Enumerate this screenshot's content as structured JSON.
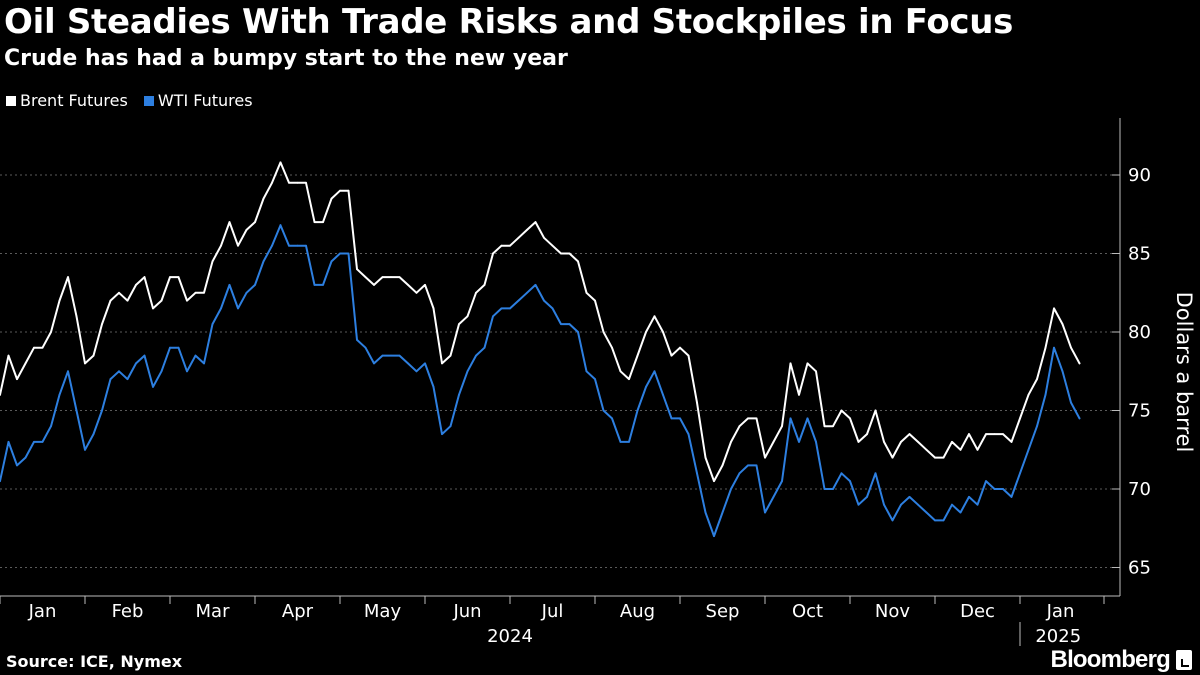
{
  "chart_data": {
    "type": "line",
    "title": "Oil Steadies With Trade Risks and Stockpiles in Focus",
    "subtitle": "Crude has had a bumpy start to the new year",
    "ylabel": "Dollars a barrel",
    "ylim": [
      63,
      93.5
    ],
    "yticks": [
      "65",
      "70",
      "75",
      "80",
      "85",
      "90"
    ],
    "x_domain": [
      0,
      12.8
    ],
    "months": [
      "Jan",
      "Feb",
      "Mar",
      "Apr",
      "May",
      "Jun",
      "Jul",
      "Aug",
      "Sep",
      "Oct",
      "Nov",
      "Dec",
      "Jan"
    ],
    "years": [
      "2024",
      "2025"
    ],
    "legend_position": "top-left",
    "grid": true,
    "series": [
      {
        "name": "Brent Futures",
        "color": "#ffffff",
        "x": [
          0.0,
          0.1,
          0.2,
          0.3,
          0.4,
          0.5,
          0.6,
          0.7,
          0.8,
          0.9,
          1.0,
          1.1,
          1.2,
          1.3,
          1.4,
          1.5,
          1.6,
          1.7,
          1.8,
          1.9,
          2.0,
          2.1,
          2.2,
          2.3,
          2.4,
          2.5,
          2.6,
          2.7,
          2.8,
          2.9,
          3.0,
          3.1,
          3.2,
          3.3,
          3.4,
          3.5,
          3.6,
          3.7,
          3.8,
          3.9,
          4.0,
          4.1,
          4.2,
          4.3,
          4.4,
          4.5,
          4.6,
          4.7,
          4.8,
          4.9,
          5.0,
          5.1,
          5.2,
          5.3,
          5.4,
          5.5,
          5.6,
          5.7,
          5.8,
          5.9,
          6.0,
          6.1,
          6.2,
          6.3,
          6.4,
          6.5,
          6.6,
          6.7,
          6.8,
          6.9,
          7.0,
          7.1,
          7.2,
          7.3,
          7.4,
          7.5,
          7.6,
          7.7,
          7.8,
          7.9,
          8.0,
          8.1,
          8.2,
          8.3,
          8.4,
          8.5,
          8.6,
          8.7,
          8.8,
          8.9,
          9.0,
          9.1,
          9.2,
          9.3,
          9.4,
          9.5,
          9.6,
          9.7,
          9.8,
          9.9,
          10.0,
          10.1,
          10.2,
          10.3,
          10.4,
          10.5,
          10.6,
          10.7,
          10.8,
          10.9,
          11.0,
          11.1,
          11.2,
          11.3,
          11.4,
          11.5,
          11.6,
          11.7,
          11.8,
          11.9,
          12.0,
          12.1,
          12.2,
          12.3,
          12.4,
          12.5,
          12.6,
          12.7
        ],
        "values": [
          76.0,
          78.5,
          77.0,
          78.0,
          79.0,
          79.0,
          80.0,
          82.0,
          83.5,
          81.0,
          78.0,
          78.5,
          80.5,
          82.0,
          82.5,
          82.0,
          83.0,
          83.5,
          81.5,
          82.0,
          83.5,
          83.5,
          82.0,
          82.5,
          82.5,
          84.5,
          85.5,
          87.0,
          85.5,
          86.5,
          87.0,
          88.5,
          89.5,
          90.8,
          89.5,
          89.5,
          89.5,
          87.0,
          87.0,
          88.5,
          89.0,
          89.0,
          84.0,
          83.5,
          83.0,
          83.5,
          83.5,
          83.5,
          83.0,
          82.5,
          83.0,
          81.5,
          78.0,
          78.5,
          80.5,
          81.0,
          82.5,
          83.0,
          85.0,
          85.5,
          85.5,
          86.0,
          86.5,
          87.0,
          86.0,
          85.5,
          85.0,
          85.0,
          84.5,
          82.5,
          82.0,
          80.0,
          79.0,
          77.5,
          77.0,
          78.5,
          80.0,
          81.0,
          80.0,
          78.5,
          79.0,
          78.5,
          75.5,
          72.0,
          70.5,
          71.5,
          73.0,
          74.0,
          74.5,
          74.5,
          72.0,
          73.0,
          74.0,
          78.0,
          76.0,
          78.0,
          77.5,
          74.0,
          74.0,
          75.0,
          74.5,
          73.0,
          73.5,
          75.0,
          73.0,
          72.0,
          73.0,
          73.5,
          73.0,
          72.5,
          72.0,
          72.0,
          73.0,
          72.5,
          73.5,
          72.5,
          73.5,
          73.5,
          73.5,
          73.0,
          74.5,
          76.0,
          77.0,
          79.0,
          81.5,
          80.5,
          79.0,
          78.0
        ]
      },
      {
        "name": "WTI Futures",
        "color": "#2d7fe0",
        "x": [
          0.0,
          0.1,
          0.2,
          0.3,
          0.4,
          0.5,
          0.6,
          0.7,
          0.8,
          0.9,
          1.0,
          1.1,
          1.2,
          1.3,
          1.4,
          1.5,
          1.6,
          1.7,
          1.8,
          1.9,
          2.0,
          2.1,
          2.2,
          2.3,
          2.4,
          2.5,
          2.6,
          2.7,
          2.8,
          2.9,
          3.0,
          3.1,
          3.2,
          3.3,
          3.4,
          3.5,
          3.6,
          3.7,
          3.8,
          3.9,
          4.0,
          4.1,
          4.2,
          4.3,
          4.4,
          4.5,
          4.6,
          4.7,
          4.8,
          4.9,
          5.0,
          5.1,
          5.2,
          5.3,
          5.4,
          5.5,
          5.6,
          5.7,
          5.8,
          5.9,
          6.0,
          6.1,
          6.2,
          6.3,
          6.4,
          6.5,
          6.6,
          6.7,
          6.8,
          6.9,
          7.0,
          7.1,
          7.2,
          7.3,
          7.4,
          7.5,
          7.6,
          7.7,
          7.8,
          7.9,
          8.0,
          8.1,
          8.2,
          8.3,
          8.4,
          8.5,
          8.6,
          8.7,
          8.8,
          8.9,
          9.0,
          9.1,
          9.2,
          9.3,
          9.4,
          9.5,
          9.6,
          9.7,
          9.8,
          9.9,
          10.0,
          10.1,
          10.2,
          10.3,
          10.4,
          10.5,
          10.6,
          10.7,
          10.8,
          10.9,
          11.0,
          11.1,
          11.2,
          11.3,
          11.4,
          11.5,
          11.6,
          11.7,
          11.8,
          11.9,
          12.0,
          12.1,
          12.2,
          12.3,
          12.4,
          12.5,
          12.6,
          12.7
        ],
        "values": [
          70.5,
          73.0,
          71.5,
          72.0,
          73.0,
          73.0,
          74.0,
          76.0,
          77.5,
          75.0,
          72.5,
          73.5,
          75.0,
          77.0,
          77.5,
          77.0,
          78.0,
          78.5,
          76.5,
          77.5,
          79.0,
          79.0,
          77.5,
          78.5,
          78.0,
          80.5,
          81.5,
          83.0,
          81.5,
          82.5,
          83.0,
          84.5,
          85.5,
          86.8,
          85.5,
          85.5,
          85.5,
          83.0,
          83.0,
          84.5,
          85.0,
          85.0,
          79.5,
          79.0,
          78.0,
          78.5,
          78.5,
          78.5,
          78.0,
          77.5,
          78.0,
          76.5,
          73.5,
          74.0,
          76.0,
          77.5,
          78.5,
          79.0,
          81.0,
          81.5,
          81.5,
          82.0,
          82.5,
          83.0,
          82.0,
          81.5,
          80.5,
          80.5,
          80.0,
          77.5,
          77.0,
          75.0,
          74.5,
          73.0,
          73.0,
          75.0,
          76.5,
          77.5,
          76.0,
          74.5,
          74.5,
          73.5,
          71.0,
          68.5,
          67.0,
          68.5,
          70.0,
          71.0,
          71.5,
          71.5,
          68.5,
          69.5,
          70.5,
          74.5,
          73.0,
          74.5,
          73.0,
          70.0,
          70.0,
          71.0,
          70.5,
          69.0,
          69.5,
          71.0,
          69.0,
          68.0,
          69.0,
          69.5,
          69.0,
          68.5,
          68.0,
          68.0,
          69.0,
          68.5,
          69.5,
          69.0,
          70.5,
          70.0,
          70.0,
          69.5,
          71.0,
          72.5,
          74.0,
          76.0,
          79.0,
          77.5,
          75.5,
          74.5
        ]
      }
    ]
  },
  "footer": {
    "source": "Source: ICE, Nymex",
    "brand": "Bloomberg"
  }
}
